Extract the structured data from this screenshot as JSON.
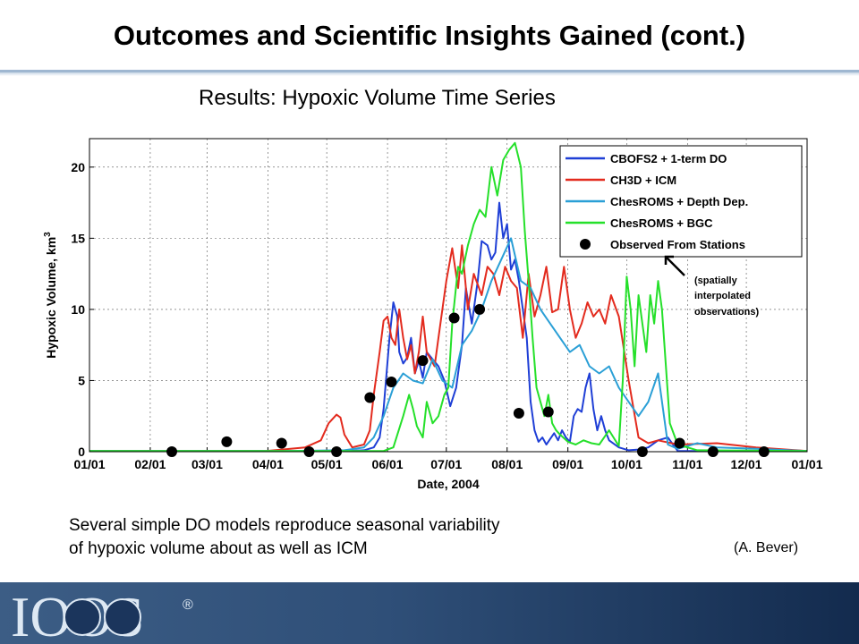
{
  "slide": {
    "title": "Outcomes and Scientific Insights Gained (cont.)",
    "chart_heading": "Results: Hypoxic Volume Time Series",
    "caption_lines": [
      "Several simple DO models reproduce seasonal variability",
      "of hypoxic volume about as well as ICM"
    ],
    "credit": "(A. Bever)",
    "logo_text": "IOOS",
    "logo_mark": "®"
  },
  "chart_data": {
    "type": "line",
    "xlabel": "Date, 2004",
    "ylabel": "Hypoxic Volume, km",
    "ylabel_superscript": "3",
    "xlim": [
      0,
      366
    ],
    "ylim": [
      0,
      22
    ],
    "grid": true,
    "x_ticks": [
      {
        "value": 0,
        "label": "01/01"
      },
      {
        "value": 31,
        "label": "02/01"
      },
      {
        "value": 60,
        "label": "03/01"
      },
      {
        "value": 91,
        "label": "04/01"
      },
      {
        "value": 121,
        "label": "05/01"
      },
      {
        "value": 152,
        "label": "06/01"
      },
      {
        "value": 182,
        "label": "07/01"
      },
      {
        "value": 213,
        "label": "08/01"
      },
      {
        "value": 244,
        "label": "09/01"
      },
      {
        "value": 274,
        "label": "10/01"
      },
      {
        "value": 305,
        "label": "11/01"
      },
      {
        "value": 335,
        "label": "12/01"
      },
      {
        "value": 366,
        "label": "01/01"
      }
    ],
    "y_ticks": [
      0,
      5,
      10,
      15,
      20
    ],
    "legend_position": "top-right",
    "series": [
      {
        "name": "CBOFS2 + 1-term DO",
        "color": "#1f3fd6",
        "x": [
          0,
          80,
          120,
          130,
          140,
          145,
          148,
          150,
          153,
          155,
          157,
          158,
          160,
          162,
          164,
          166,
          168,
          170,
          172,
          175,
          178,
          181,
          184,
          187,
          190,
          192,
          195,
          198,
          200,
          203,
          205,
          207,
          209,
          211,
          213,
          215,
          217,
          219,
          221,
          223,
          225,
          227,
          229,
          231,
          233,
          235,
          237,
          239,
          241,
          243,
          245,
          247,
          249,
          251,
          253,
          255,
          257,
          259,
          261,
          263,
          265,
          270,
          275,
          280,
          285,
          290,
          295,
          300,
          366
        ],
        "y": [
          0.05,
          0.05,
          0.05,
          0.05,
          0.1,
          0.3,
          1.0,
          3.0,
          8.0,
          10.5,
          9.5,
          7.0,
          6.2,
          6.6,
          8.0,
          5.5,
          6.4,
          5.2,
          7.0,
          6.5,
          6.0,
          5.0,
          3.2,
          4.5,
          7.5,
          11.5,
          9.0,
          12.0,
          14.8,
          14.5,
          13.5,
          14.0,
          17.5,
          15.0,
          16.0,
          12.8,
          13.5,
          12.0,
          10.0,
          8.0,
          3.5,
          1.5,
          0.7,
          1.0,
          0.5,
          0.9,
          1.3,
          0.8,
          1.5,
          1.0,
          0.7,
          2.5,
          3.0,
          2.8,
          4.5,
          5.5,
          3.0,
          1.5,
          2.5,
          1.5,
          0.8,
          0.3,
          0.1,
          0.15,
          0.3,
          0.8,
          1.0,
          0.05,
          0.05
        ]
      },
      {
        "name": "CH3D + ICM",
        "color": "#e32b1e",
        "x": [
          0,
          60,
          90,
          110,
          118,
          122,
          126,
          128,
          130,
          134,
          140,
          143,
          145,
          148,
          150,
          152,
          154,
          156,
          158,
          160,
          162,
          164,
          166,
          168,
          170,
          172,
          174,
          176,
          178,
          180,
          182,
          185,
          188,
          190,
          193,
          196,
          200,
          203,
          206,
          209,
          212,
          215,
          218,
          221,
          224,
          227,
          230,
          233,
          236,
          239,
          242,
          245,
          248,
          251,
          254,
          257,
          260,
          263,
          266,
          270,
          275,
          280,
          285,
          290,
          300,
          320,
          340,
          366
        ],
        "y": [
          0.05,
          0.05,
          0.05,
          0.3,
          0.8,
          2.0,
          2.6,
          2.4,
          1.2,
          0.3,
          0.5,
          1.5,
          4.0,
          7.0,
          9.2,
          9.5,
          8.0,
          7.5,
          10.0,
          8.0,
          6.5,
          7.5,
          5.5,
          7.0,
          9.5,
          7.0,
          6.5,
          6.0,
          8.0,
          10.0,
          12.0,
          14.3,
          11.5,
          14.5,
          10.0,
          12.5,
          11.0,
          13.0,
          12.5,
          11.0,
          13.0,
          12.0,
          11.5,
          8.0,
          12.5,
          9.5,
          11.0,
          13.0,
          9.8,
          10.0,
          13.0,
          10.0,
          8.0,
          9.0,
          10.5,
          9.5,
          10.0,
          9.0,
          11.0,
          9.5,
          5.0,
          1.0,
          0.6,
          0.8,
          0.5,
          0.6,
          0.3,
          0.05
        ]
      },
      {
        "name": "ChesROMS + Depth Dep.",
        "color": "#2a9fd6",
        "x": [
          0,
          100,
          130,
          140,
          145,
          150,
          155,
          160,
          165,
          170,
          175,
          180,
          185,
          190,
          195,
          200,
          205,
          210,
          215,
          220,
          225,
          230,
          235,
          240,
          245,
          250,
          255,
          260,
          265,
          270,
          275,
          280,
          285,
          290,
          295,
          300,
          310,
          320,
          340,
          366
        ],
        "y": [
          0.05,
          0.05,
          0.1,
          0.3,
          1.0,
          2.5,
          4.5,
          5.5,
          5.0,
          4.8,
          6.5,
          5.0,
          4.5,
          7.5,
          8.5,
          10.0,
          12.0,
          13.5,
          15.0,
          12.0,
          11.5,
          10.0,
          9.0,
          8.0,
          7.0,
          7.5,
          6.0,
          5.5,
          6.0,
          4.5,
          3.5,
          2.5,
          3.5,
          5.5,
          0.5,
          0.2,
          0.6,
          0.3,
          0.2,
          0.05
        ]
      },
      {
        "name": "ChesROMS + BGC",
        "color": "#25e02a",
        "x": [
          0,
          80,
          150,
          155,
          160,
          163,
          165,
          167,
          170,
          172,
          175,
          178,
          181,
          183,
          185,
          188,
          190,
          193,
          196,
          199,
          202,
          205,
          208,
          211,
          214,
          217,
          220,
          222,
          224,
          226,
          228,
          230,
          232,
          234,
          236,
          238,
          240,
          244,
          248,
          252,
          256,
          260,
          265,
          270,
          272,
          274,
          276,
          278,
          280,
          282,
          284,
          286,
          288,
          290,
          292,
          294,
          296,
          300,
          310,
          366
        ],
        "y": [
          0.05,
          0.05,
          0.05,
          0.3,
          2.5,
          4.0,
          3.0,
          1.8,
          1.0,
          3.5,
          2.0,
          2.5,
          4.0,
          4.5,
          9.0,
          13.0,
          12.5,
          14.5,
          16.0,
          17.0,
          16.5,
          20.0,
          18.0,
          20.5,
          21.2,
          21.7,
          20.0,
          15.5,
          12.0,
          8.0,
          4.5,
          3.5,
          2.5,
          4.0,
          2.0,
          1.5,
          1.2,
          0.7,
          0.5,
          0.8,
          0.6,
          0.5,
          1.5,
          0.4,
          5.0,
          12.3,
          10.0,
          6.0,
          11.0,
          9.0,
          7.0,
          11.0,
          9.0,
          12.0,
          10.0,
          6.0,
          2.0,
          0.5,
          0.1,
          0.05
        ]
      }
    ],
    "observed": {
      "name": "Observed From Stations",
      "x": [
        42,
        70,
        98,
        112,
        126,
        143,
        154,
        170,
        186,
        199,
        219,
        234,
        282,
        301,
        318,
        344
      ],
      "y": [
        0.0,
        0.7,
        0.6,
        0.0,
        0.0,
        3.8,
        4.9,
        6.4,
        9.4,
        10.0,
        2.7,
        2.8,
        0.0,
        0.6,
        0.0,
        0.0
      ]
    },
    "annotation": {
      "lines": [
        "(spatially",
        "interpolated",
        "observations)"
      ]
    }
  }
}
